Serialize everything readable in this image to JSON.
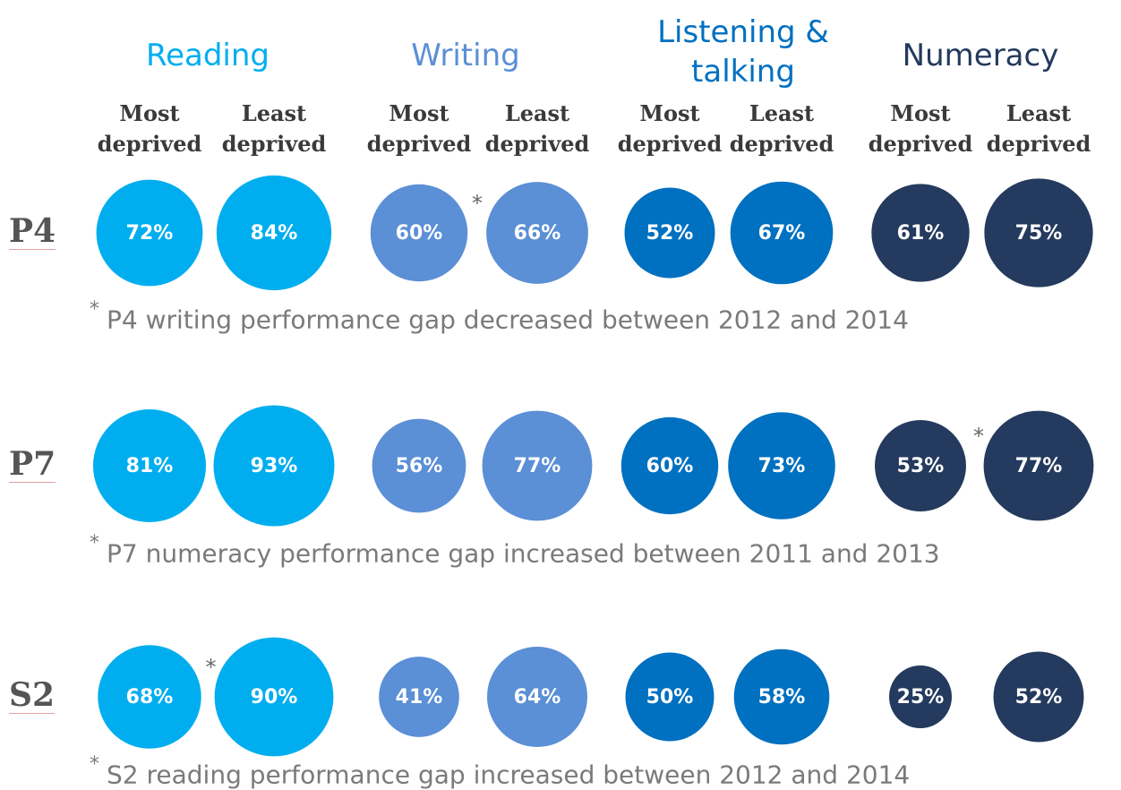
{
  "chart_data": {
    "type": "bubble",
    "subjects": [
      {
        "name": "Reading",
        "color": "#00aeef"
      },
      {
        "name": "Writing",
        "color": "#5b8fd6"
      },
      {
        "name": "Listening & talking",
        "color": "#0070c0"
      },
      {
        "name": "Numeracy",
        "color": "#243a5e"
      }
    ],
    "groups": [
      "Most deprived",
      "Least deprived"
    ],
    "flag_symbol": "*",
    "series": [
      {
        "name": "P4",
        "values": [
          72,
          84,
          60,
          66,
          52,
          67,
          61,
          75
        ],
        "value_labels": [
          "72%",
          "84%",
          "60%",
          "66%",
          "52%",
          "67%",
          "61%",
          "75%"
        ],
        "flagged": "Writing",
        "note": "P4 writing performance gap decreased between 2012 and 2014"
      },
      {
        "name": "P7",
        "values": [
          81,
          93,
          56,
          77,
          60,
          73,
          53,
          77
        ],
        "value_labels": [
          "81%",
          "93%",
          "56%",
          "77%",
          "60%",
          "73%",
          "53%",
          "77%"
        ],
        "flagged": "Numeracy",
        "note": "P7 numeracy performance gap increased between 2011 and 2013"
      },
      {
        "name": "S2",
        "values": [
          68,
          90,
          41,
          64,
          50,
          58,
          25,
          52
        ],
        "value_labels": [
          "68%",
          "90%",
          "41%",
          "64%",
          "50%",
          "58%",
          "25%",
          "52%"
        ],
        "flagged": "Reading",
        "note": "S2 reading performance gap increased between 2012 and 2014"
      }
    ]
  }
}
